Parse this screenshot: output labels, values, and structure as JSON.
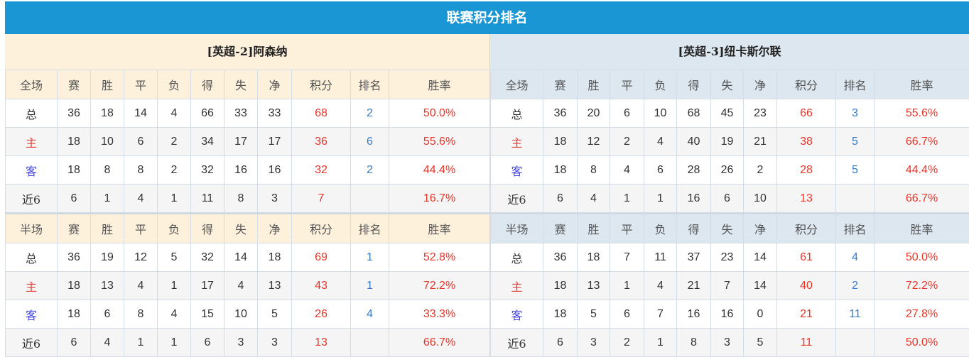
{
  "title": "联赛积分排名",
  "columns_full": [
    "全场",
    "赛",
    "胜",
    "平",
    "负",
    "得",
    "失",
    "净",
    "积分",
    "排名",
    "胜率"
  ],
  "columns_half": [
    "半场",
    "赛",
    "胜",
    "平",
    "负",
    "得",
    "失",
    "净",
    "积分",
    "排名",
    "胜率"
  ],
  "teams": [
    {
      "name": "[英超-2]阿森纳",
      "full": [
        [
          "总",
          "36",
          "18",
          "14",
          "4",
          "66",
          "33",
          "33",
          "68",
          "2",
          "50.0%"
        ],
        [
          "主",
          "18",
          "10",
          "6",
          "2",
          "34",
          "17",
          "17",
          "36",
          "6",
          "55.6%"
        ],
        [
          "客",
          "18",
          "8",
          "8",
          "2",
          "32",
          "16",
          "16",
          "32",
          "2",
          "44.4%"
        ],
        [
          "近6",
          "6",
          "1",
          "4",
          "1",
          "11",
          "8",
          "3",
          "7",
          "",
          "16.7%"
        ]
      ],
      "half": [
        [
          "总",
          "36",
          "19",
          "12",
          "5",
          "32",
          "14",
          "18",
          "69",
          "1",
          "52.8%"
        ],
        [
          "主",
          "18",
          "13",
          "4",
          "1",
          "17",
          "4",
          "13",
          "43",
          "1",
          "72.2%"
        ],
        [
          "客",
          "18",
          "6",
          "8",
          "4",
          "15",
          "10",
          "5",
          "26",
          "4",
          "33.3%"
        ],
        [
          "近6",
          "6",
          "4",
          "1",
          "1",
          "6",
          "3",
          "3",
          "13",
          "",
          "66.7%"
        ]
      ]
    },
    {
      "name": "[英超-3]纽卡斯尔联",
      "full": [
        [
          "总",
          "36",
          "20",
          "6",
          "10",
          "68",
          "45",
          "23",
          "66",
          "3",
          "55.6%"
        ],
        [
          "主",
          "18",
          "12",
          "2",
          "4",
          "40",
          "19",
          "21",
          "38",
          "5",
          "66.7%"
        ],
        [
          "客",
          "18",
          "8",
          "4",
          "6",
          "28",
          "26",
          "2",
          "28",
          "5",
          "44.4%"
        ],
        [
          "近6",
          "6",
          "4",
          "1",
          "1",
          "16",
          "6",
          "10",
          "13",
          "",
          "66.7%"
        ]
      ],
      "half": [
        [
          "总",
          "36",
          "18",
          "7",
          "11",
          "37",
          "23",
          "14",
          "61",
          "4",
          "50.0%"
        ],
        [
          "主",
          "18",
          "13",
          "1",
          "4",
          "21",
          "7",
          "14",
          "40",
          "2",
          "72.2%"
        ],
        [
          "客",
          "18",
          "5",
          "6",
          "7",
          "16",
          "16",
          "0",
          "21",
          "11",
          "27.8%"
        ],
        [
          "近6",
          "6",
          "3",
          "2",
          "1",
          "8",
          "3",
          "5",
          "11",
          "",
          "50.0%"
        ]
      ]
    }
  ]
}
